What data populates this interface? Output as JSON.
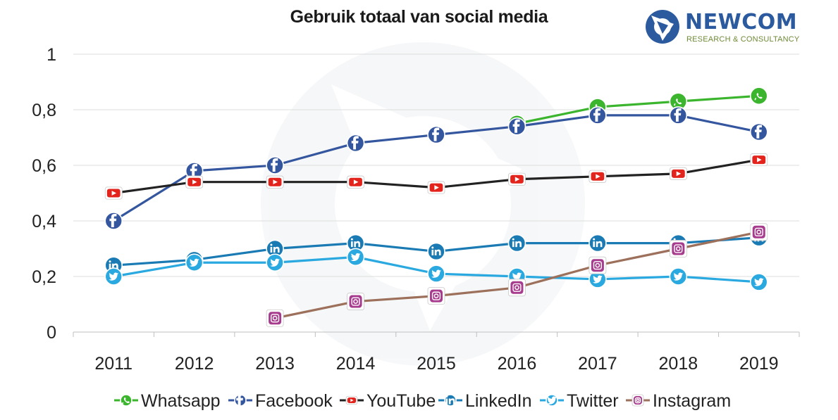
{
  "title": "Gebruik totaal van social media",
  "brand": {
    "name": "NEWCOM",
    "tagline": "RESEARCH & CONSULTANCY",
    "name_color": "#2c5a9e",
    "tagline_color": "#6e8a36"
  },
  "chart_data": {
    "type": "line",
    "title": "Gebruik totaal van social media",
    "x": [
      "2011",
      "2012",
      "2013",
      "2014",
      "2015",
      "2016",
      "2017",
      "2018",
      "2019"
    ],
    "ylim": [
      0,
      1
    ],
    "yticks": [
      0,
      0.2,
      0.4,
      0.6,
      0.8,
      1
    ],
    "ytick_labels": [
      "0",
      "0,2",
      "0,4",
      "0,6",
      "0,8",
      "1"
    ],
    "grid": "horizontal",
    "legend": "bottom",
    "series": [
      {
        "name": "Whatsapp",
        "color": "#3cb52e",
        "icon": "whatsapp-icon",
        "values": [
          null,
          null,
          null,
          null,
          null,
          0.75,
          0.81,
          0.83,
          0.85
        ]
      },
      {
        "name": "Facebook",
        "color": "#34569f",
        "icon": "facebook-icon",
        "values": [
          0.4,
          0.58,
          0.6,
          0.68,
          0.71,
          0.74,
          0.78,
          0.78,
          0.72
        ]
      },
      {
        "name": "YouTube",
        "color": "#222222",
        "marker_color": "#e3241c",
        "icon": "youtube-icon",
        "values": [
          0.5,
          0.54,
          0.54,
          0.54,
          0.52,
          0.55,
          0.56,
          0.57,
          0.62
        ]
      },
      {
        "name": "LinkedIn",
        "color": "#1a7bb4",
        "icon": "linkedin-icon",
        "values": [
          0.24,
          0.26,
          0.3,
          0.32,
          0.29,
          0.32,
          0.32,
          0.32,
          0.34
        ]
      },
      {
        "name": "Twitter",
        "color": "#2aa9e0",
        "icon": "twitter-icon",
        "values": [
          0.2,
          0.25,
          0.25,
          0.27,
          0.21,
          0.2,
          0.19,
          0.2,
          0.18
        ]
      },
      {
        "name": "Instagram",
        "color": "#9c705a",
        "marker_color": "#a73c8e",
        "icon": "instagram-icon",
        "values": [
          null,
          null,
          0.05,
          0.11,
          0.13,
          0.16,
          0.24,
          0.3,
          0.36
        ]
      }
    ]
  }
}
